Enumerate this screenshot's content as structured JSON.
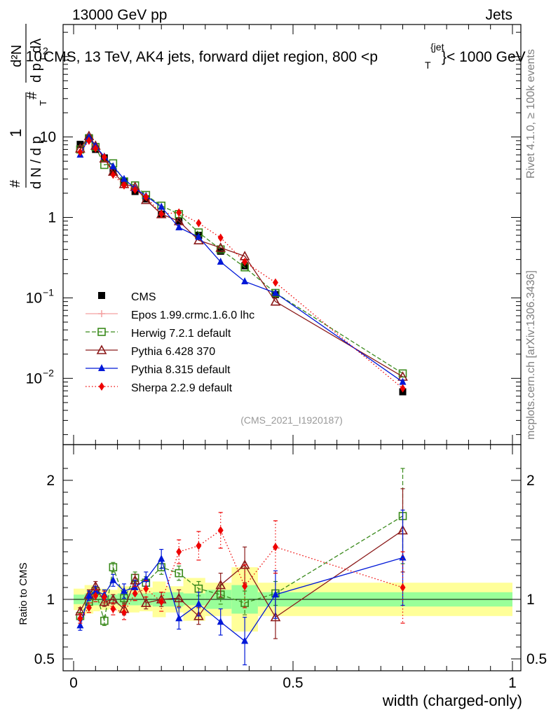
{
  "header": {
    "left": "13000 GeV pp",
    "right": "Jets",
    "rivet_label": "Rivet 4.1.0, ≥ 100k events",
    "mcplots_label": "mcplots.cern.ch [arXiv:1306.3436]",
    "watermark": "(CMS_2021_I1920187)"
  },
  "chart_data": {
    "type": "scatter",
    "title": "CMS, 13 TeV, AK4 jets, forward dijet region, 800 <p",
    "title_sup": "{jet",
    "title_sub": "T",
    "title_tail": "}< 1000 GeV",
    "ylabel_main": {
      "frac_num": "1",
      "frac_den_pre": "d N / d p",
      "frac_den_sub": "T",
      "deriv_num": "d²N",
      "deriv_den_pre": "d p",
      "deriv_den_sub": "T",
      "deriv_den_post": " dλ"
    },
    "ylabel_ratio": "Ratio to CMS",
    "xlabel": "width (charged-only)",
    "xlim": [
      -0.02,
      1.0
    ],
    "ylim_main": [
      0.0015,
      250
    ],
    "ylim_ratio": [
      0.4,
      2.3
    ],
    "main_ticks": [
      {
        "value": 0.01,
        "base": "10",
        "exp": "−2"
      },
      {
        "value": 0.1,
        "base": "10",
        "exp": "−1"
      },
      {
        "value": 1,
        "base": "1",
        "exp": ""
      },
      {
        "value": 10,
        "base": "10",
        "exp": ""
      },
      {
        "value": 100,
        "base": "10",
        "exp": "2"
      }
    ],
    "ratio_ticks": [
      {
        "value": 0.5,
        "label": "0.5"
      },
      {
        "value": 1,
        "label": "1"
      },
      {
        "value": 2,
        "label": "2"
      }
    ],
    "x_ticks": [
      {
        "value": 0,
        "label": "0"
      },
      {
        "value": 0.5,
        "label": "0.5"
      },
      {
        "value": 1,
        "label": "1"
      }
    ],
    "bins": [
      [
        0.0,
        0.025
      ],
      [
        0.025,
        0.045
      ],
      [
        0.045,
        0.06
      ],
      [
        0.06,
        0.08
      ],
      [
        0.08,
        0.1
      ],
      [
        0.1,
        0.125
      ],
      [
        0.125,
        0.15
      ],
      [
        0.15,
        0.18
      ],
      [
        0.18,
        0.21
      ],
      [
        0.21,
        0.25
      ],
      [
        0.25,
        0.3
      ],
      [
        0.3,
        0.36
      ],
      [
        0.36,
        0.42
      ],
      [
        0.42,
        0.5
      ],
      [
        0.5,
        1.0
      ]
    ],
    "x": [
      0.015,
      0.035,
      0.05,
      0.07,
      0.09,
      0.115,
      0.14,
      0.165,
      0.2,
      0.24,
      0.285,
      0.335,
      0.39,
      0.46,
      0.75
    ],
    "band_stat": [
      0.04,
      0.05,
      0.05,
      0.04,
      0.04,
      0.05,
      0.05,
      0.05,
      0.06,
      0.06,
      0.05,
      0.08,
      0.12,
      0.06,
      0.06
    ],
    "band_total": [
      0.09,
      0.12,
      0.1,
      0.09,
      0.08,
      0.11,
      0.11,
      0.1,
      0.15,
      0.11,
      0.18,
      0.14,
      0.27,
      0.14,
      0.14
    ],
    "series": [
      {
        "name": "CMS",
        "color": "#000000",
        "marker": "square-filled",
        "dash": "",
        "values": [
          8.1,
          9.8,
          7.0,
          5.5,
          3.7,
          2.8,
          2.1,
          1.7,
          1.1,
          0.9,
          0.6,
          0.38,
          0.25,
          0.11,
          0.0068
        ],
        "errors": [
          0.2,
          0.3,
          0.2,
          0.15,
          0.1,
          0.08,
          0.06,
          0.05,
          0.04,
          0.03,
          0.02,
          0.015,
          0.012,
          0.006,
          0.0006
        ]
      },
      {
        "name": "Epos 1.99.crmc.1.6.0 lhc",
        "color": "#f4a0a0",
        "marker": "cross",
        "dash": "",
        "values": [],
        "ratio": [],
        "ratio_err": []
      },
      {
        "name": "Herwig 7.2.1 default",
        "color": "#3a8a1c",
        "marker": "square-open",
        "dash": "6,3",
        "values": [
          7.0,
          9.6,
          7.5,
          4.5,
          4.7,
          2.8,
          2.5,
          1.9,
          1.4,
          1.1,
          0.65,
          0.4,
          0.24,
          0.115,
          0.0115
        ],
        "ratio": [
          0.86,
          0.98,
          1.07,
          0.82,
          1.27,
          1.01,
          1.18,
          1.14,
          1.27,
          1.22,
          1.09,
          1.04,
          0.97,
          1.05,
          1.7
        ],
        "ratio_err": [
          0.03,
          0.04,
          0.04,
          0.04,
          0.04,
          0.05,
          0.05,
          0.05,
          0.06,
          0.06,
          0.06,
          0.08,
          0.1,
          0.1,
          0.4
        ]
      },
      {
        "name": "Pythia 6.428 370",
        "color": "#8b1a1a",
        "marker": "triangle-open",
        "dash": "",
        "values": [
          7.2,
          10.3,
          7.8,
          5.4,
          3.7,
          2.6,
          2.4,
          1.65,
          1.1,
          0.9,
          0.52,
          0.42,
          0.33,
          0.09,
          0.0105
        ],
        "ratio": [
          0.9,
          1.04,
          1.11,
          0.98,
          1.0,
          0.92,
          1.16,
          0.97,
          1.0,
          1.01,
          0.86,
          1.12,
          1.29,
          0.85,
          1.58
        ],
        "ratio_err": [
          0.03,
          0.04,
          0.04,
          0.04,
          0.04,
          0.05,
          0.05,
          0.05,
          0.06,
          0.07,
          0.07,
          0.1,
          0.15,
          0.18,
          0.35
        ]
      },
      {
        "name": "Pythia 8.315 default",
        "color": "#0018d8",
        "marker": "triangle-filled",
        "dash": "",
        "values": [
          6.0,
          9.9,
          7.7,
          5.7,
          4.3,
          3.0,
          2.3,
          1.85,
          1.35,
          0.75,
          0.57,
          0.28,
          0.16,
          0.115,
          0.009
        ],
        "ratio": [
          0.78,
          1.03,
          1.07,
          1.04,
          1.16,
          1.07,
          1.1,
          1.17,
          1.34,
          0.84,
          0.96,
          0.81,
          0.65,
          1.04,
          1.35
        ],
        "ratio_err": [
          0.04,
          0.04,
          0.04,
          0.04,
          0.05,
          0.06,
          0.06,
          0.06,
          0.08,
          0.09,
          0.1,
          0.11,
          0.2,
          0.2,
          0.4
        ]
      },
      {
        "name": "Sherpa 2.2.9 default",
        "color": "#ee0000",
        "marker": "diamond",
        "dash": "1.5,3",
        "values": [
          6.5,
          9.0,
          7.2,
          5.6,
          3.4,
          2.5,
          2.2,
          1.8,
          1.1,
          1.15,
          0.85,
          0.56,
          0.28,
          0.155,
          0.0075
        ],
        "ratio": [
          0.84,
          0.93,
          1.03,
          1.02,
          0.92,
          0.89,
          1.05,
          1.09,
          0.98,
          1.4,
          1.45,
          1.58,
          1.11,
          1.44,
          1.1
        ],
        "ratio_err": [
          0.04,
          0.04,
          0.05,
          0.05,
          0.05,
          0.06,
          0.06,
          0.07,
          0.08,
          0.1,
          0.12,
          0.15,
          0.18,
          0.22,
          0.3
        ]
      }
    ]
  }
}
